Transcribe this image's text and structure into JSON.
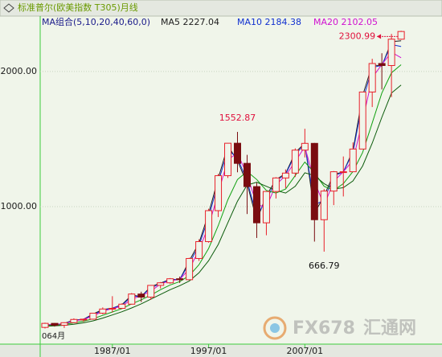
{
  "chart_data": {
    "type": "candlestick",
    "title": "标准普尔(欧美指数 T305)月线",
    "ma_group": "MA组合(5,10,20,40,60,0)",
    "corner_label": "064月",
    "watermark": {
      "logo": "FX678",
      "name": "汇通网"
    },
    "xlim": [
      1979.5,
      2021.25
    ],
    "xticks": [
      {
        "value": 1987,
        "label": "1987/01"
      },
      {
        "value": 1997,
        "label": "1997/01"
      },
      {
        "value": 2007,
        "label": "2007/01"
      }
    ],
    "ylim": [
      0,
      2410
    ],
    "yticks": [
      {
        "value": 1000,
        "label": "1000.00"
      },
      {
        "value": 2000,
        "label": "2000.00"
      }
    ],
    "grid": true,
    "up_color": "#e8202a",
    "down_color": "#7a0c10",
    "x": [
      1980,
      1981,
      1982,
      1983,
      1984,
      1985,
      1986,
      1987,
      1988,
      1989,
      1990,
      1991,
      1992,
      1993,
      1994,
      1995,
      1996,
      1997,
      1998,
      1999,
      2000,
      2001,
      2002,
      2003,
      2004,
      2005,
      2006,
      2007,
      2008,
      2009,
      2010,
      2011,
      2012,
      2013,
      2014,
      2015,
      2016,
      2017
    ],
    "open": [
      106,
      136,
      122,
      141,
      165,
      167,
      211,
      242,
      247,
      278,
      353,
      330,
      417,
      436,
      466,
      459,
      616,
      741,
      970,
      1229,
      1469,
      1320,
      1148,
      880,
      1112,
      1212,
      1248,
      1418,
      1468,
      903,
      1115,
      1258,
      1258,
      1426,
      1848,
      2059,
      2044,
      2239
    ],
    "high": [
      141,
      138,
      144,
      173,
      171,
      212,
      254,
      337,
      284,
      360,
      370,
      419,
      442,
      471,
      482,
      622,
      758,
      984,
      1242,
      1470,
      1552.87,
      1383,
      1176,
      1112,
      1218,
      1275,
      1431,
      1576,
      1471,
      1130,
      1263,
      1371,
      1475,
      1849,
      2094,
      2135,
      2278,
      2300.99
    ],
    "low": [
      98,
      112,
      102,
      138,
      147,
      163,
      203,
      216,
      242,
      275,
      294,
      311,
      394,
      429,
      435,
      457,
      598,
      733,
      923,
      1212,
      1254,
      945,
      768,
      788,
      1060,
      1137,
      1219,
      1364,
      741,
      666.79,
      1011,
      1075,
      1258,
      1426,
      1737,
      1867,
      1810,
      2234
    ],
    "close": [
      136,
      122,
      141,
      165,
      167,
      211,
      242,
      247,
      278,
      353,
      330,
      417,
      436,
      466,
      459,
      616,
      741,
      970,
      1229,
      1469,
      1320,
      1148,
      880,
      1112,
      1212,
      1248,
      1418,
      1468,
      903,
      1115,
      1258,
      1258,
      1426,
      1848,
      2059,
      2044,
      2239,
      2296
    ],
    "series": [
      {
        "name": "MA5",
        "color": "#202020",
        "values": [
          130,
          125,
          136,
          160,
          166,
          205,
          238,
          248,
          275,
          345,
          335,
          408,
          434,
          462,
          460,
          600,
          730,
          950,
          1210,
          1450,
          1340,
          1170,
          900,
          1080,
          1200,
          1245,
          1400,
          1470,
          950,
          1080,
          1240,
          1255,
          1415,
          1820,
          2050,
          2040,
          2220,
          2227.04
        ]
      },
      {
        "name": "MA10",
        "color": "#1030d0",
        "values": [
          128,
          127,
          134,
          157,
          166,
          198,
          233,
          248,
          271,
          335,
          338,
          397,
          431,
          458,
          461,
          580,
          712,
          920,
          1180,
          1420,
          1360,
          1190,
          930,
          1050,
          1190,
          1240,
          1385,
          1465,
          1010,
          1050,
          1225,
          1257,
          1400,
          1780,
          2030,
          2045,
          2200,
          2184.38
        ]
      },
      {
        "name": "MA20",
        "color": "#d010d0",
        "values": [
          125,
          129,
          132,
          153,
          166,
          189,
          226,
          245,
          263,
          315,
          341,
          374,
          427,
          451,
          462,
          538,
          679,
          856,
          1100,
          1349,
          1395,
          1234,
          1014,
          996,
          1162,
          1230,
          1333,
          1443,
          1186,
          1009,
          1187,
          1258,
          1342,
          1637,
          1954,
          2052,
          2142,
          2102.05
        ]
      },
      {
        "color": "#10a010",
        "values": [
          120,
          122,
          128,
          140,
          152,
          170,
          195,
          220,
          245,
          280,
          310,
          345,
          385,
          420,
          445,
          490,
          570,
          690,
          860,
          1050,
          1200,
          1260,
          1200,
          1120,
          1100,
          1130,
          1230,
          1330,
          1250,
          1150,
          1120,
          1170,
          1260,
          1400,
          1620,
          1840,
          1990,
          2050
        ]
      },
      {
        "color": "#0a5a0a",
        "values": [
          115,
          118,
          122,
          130,
          140,
          155,
          175,
          198,
          222,
          250,
          280,
          315,
          350,
          385,
          415,
          450,
          510,
          600,
          720,
          880,
          1040,
          1160,
          1180,
          1150,
          1120,
          1100,
          1150,
          1250,
          1230,
          1170,
          1130,
          1140,
          1190,
          1300,
          1470,
          1660,
          1840,
          1900
        ]
      }
    ],
    "annotations": [
      {
        "value": 2300.99,
        "color": "#e0103c"
      },
      {
        "value": 1552.87,
        "color": "#e0103c"
      },
      {
        "value": 666.79,
        "color": "#111111"
      }
    ]
  }
}
